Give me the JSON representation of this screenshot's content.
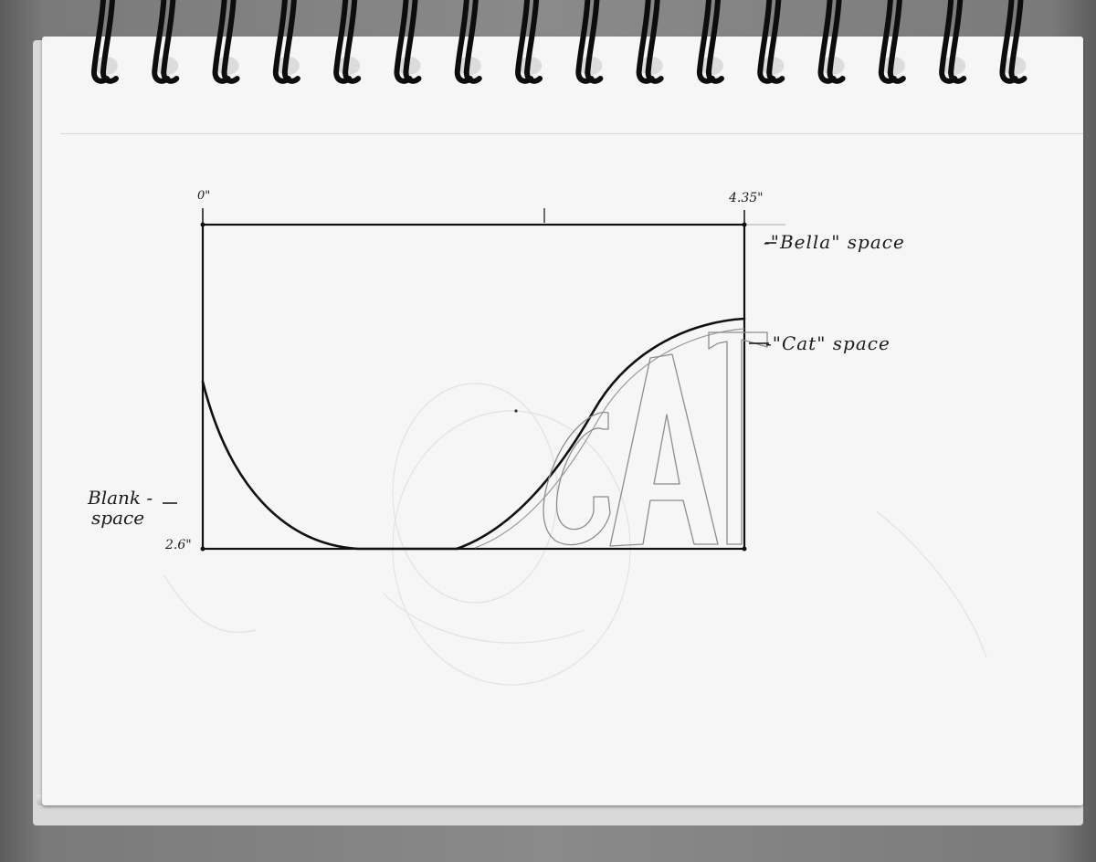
{
  "dimensions": {
    "start": "0\"",
    "width": "4.35\"",
    "height": "2.6\""
  },
  "labels": {
    "bella": "-\"Bella\" space",
    "cat": "-\"Cat\" space",
    "blank_line1": "Blank -",
    "blank_line2": "space"
  },
  "lettering": {
    "word": "CAT"
  },
  "colors": {
    "paper": "#f6f6f6",
    "ink": "#111111",
    "pencil": "#9a9a9a",
    "spiral_wire": "#0d0d0d",
    "background": "#6c6c6c"
  },
  "icons": {
    "binding": "spiral-binding-icon"
  }
}
